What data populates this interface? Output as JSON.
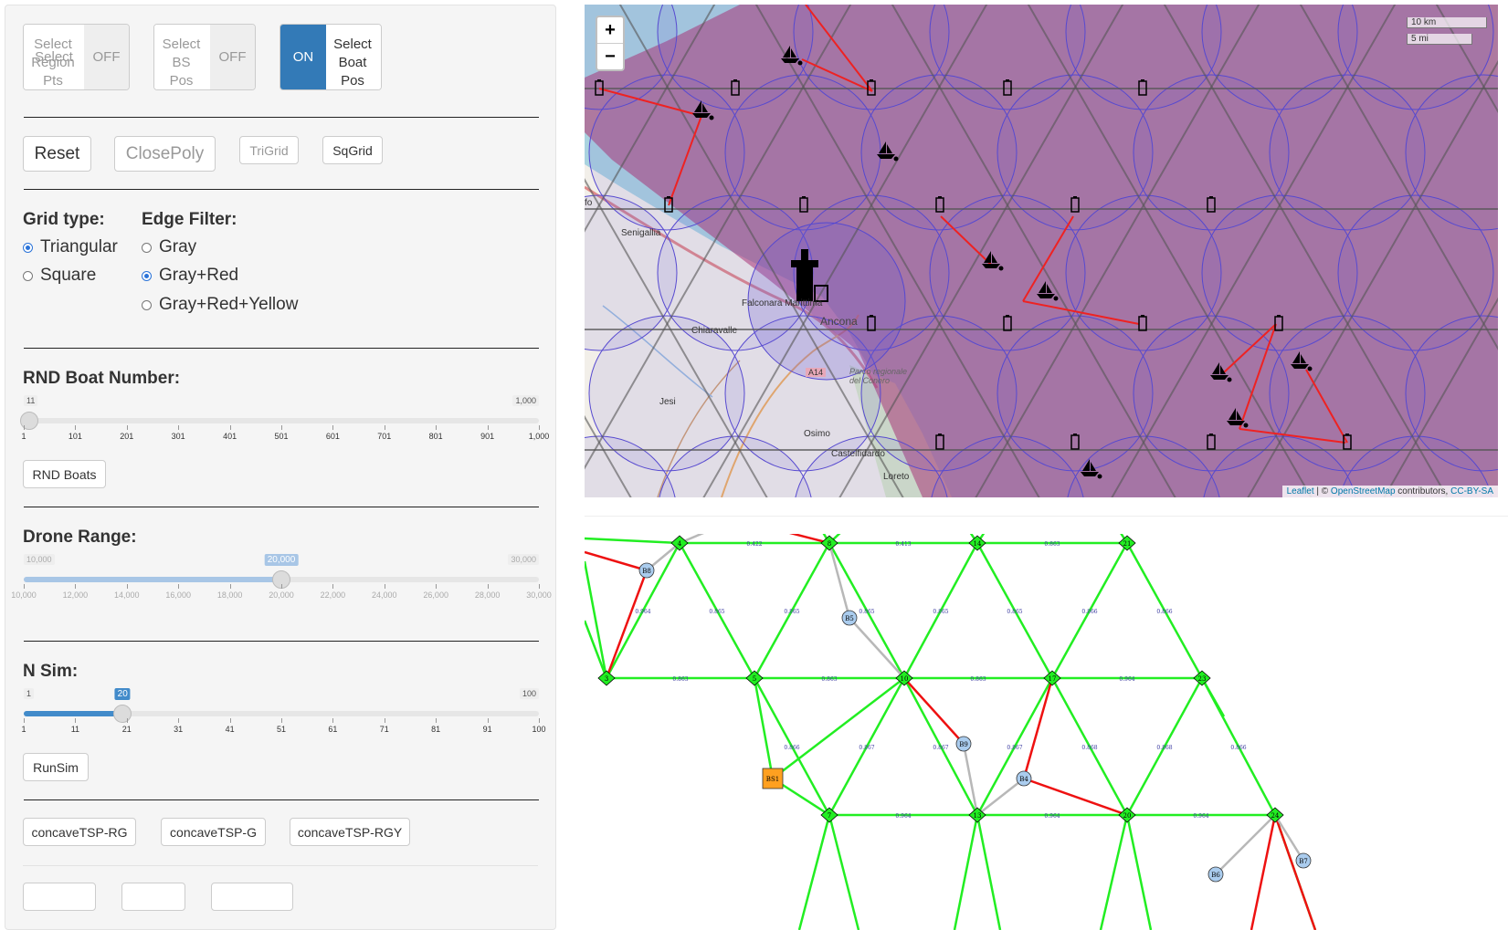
{
  "toggles": {
    "region": {
      "label_lines": [
        "Select",
        "Region",
        "Pts"
      ],
      "state": "OFF"
    },
    "bs": {
      "label_lines": [
        "Select",
        "BS",
        "Pos"
      ],
      "state": "OFF"
    },
    "boat": {
      "label_lines": [
        "Select",
        "Boat",
        "Pos"
      ],
      "state": "ON"
    }
  },
  "buttons": {
    "reset": "Reset",
    "closepoly": "ClosePoly",
    "trigrid": "TriGrid",
    "sqgrid": "SqGrid",
    "rnd_boats": "RND Boats",
    "runsim": "RunSim",
    "concave_rg": "concaveTSP-RG",
    "concave_g": "concaveTSP-G",
    "concave_rgy": "concaveTSP-RGY"
  },
  "grid_type": {
    "title": "Grid type:",
    "options": [
      "Triangular",
      "Square"
    ],
    "selected": "Triangular"
  },
  "edge_filter": {
    "title": "Edge Filter:",
    "options": [
      "Gray",
      "Gray+Red",
      "Gray+Red+Yellow"
    ],
    "selected": "Gray+Red"
  },
  "sliders": {
    "boat_number": {
      "title": "RND Boat Number:",
      "min_label": "1",
      "max_label": "1,000",
      "value_label": "11",
      "min": 1,
      "max": 1000,
      "value": 11,
      "ticks": [
        "1",
        "101",
        "201",
        "301",
        "401",
        "501",
        "601",
        "701",
        "801",
        "901",
        "1,000"
      ],
      "disabled": false
    },
    "drone_range": {
      "title": "Drone Range:",
      "min_label": "10,000",
      "max_label": "30,000",
      "value_label": "20,000",
      "min": 10000,
      "max": 30000,
      "value": 20000,
      "ticks": [
        "10,000",
        "12,000",
        "14,000",
        "16,000",
        "18,000",
        "20,000",
        "22,000",
        "24,000",
        "26,000",
        "28,000",
        "30,000"
      ],
      "disabled": true
    },
    "nsim": {
      "title": "N Sim:",
      "min_label": "1",
      "max_label": "100",
      "value_label": "20",
      "min": 1,
      "max": 100,
      "value": 20,
      "ticks": [
        "1",
        "11",
        "21",
        "31",
        "41",
        "51",
        "61",
        "71",
        "81",
        "91",
        "100"
      ],
      "disabled": false
    }
  },
  "map": {
    "zoom_in": "+",
    "zoom_out": "−",
    "scale_km": "10 km",
    "scale_mi": "5 mi",
    "attribution": {
      "leaflet": "Leaflet",
      "sep": " | © ",
      "osm": "OpenStreetMap",
      "contrib": " contributors, ",
      "license": "CC-BY-SA"
    },
    "places": [
      "Senigallia",
      "Falconara Marittima",
      "Chiaravalle",
      "Ancona",
      "Jesi",
      "Osimo",
      "Castelfidardo",
      "Loreto",
      "Parco regionale del Conero",
      "A14",
      "fo"
    ],
    "colors": {
      "sea": "#aad3df",
      "land": "#f2efe9",
      "polygon": "#b0306a",
      "circle": "#6b5cd6"
    }
  },
  "graph": {
    "node_labels": [
      "3",
      "4",
      "5",
      "7",
      "8",
      "10",
      "13",
      "14",
      "17",
      "20",
      "21",
      "23",
      "24"
    ],
    "boat_labels": [
      "B8",
      "B5",
      "B9",
      "B4",
      "B6",
      "B7"
    ],
    "bs_label": "BS1",
    "edge_labels": [
      "0.422",
      "0.413",
      "0.863",
      "0.863",
      "0.863",
      "0.863",
      "0.964",
      "0.964",
      "0.964",
      "0.964",
      "0.964",
      "0.865",
      "0.865",
      "0.865",
      "0.865",
      "0.865",
      "0.866",
      "0.866",
      "0.866",
      "0.866",
      "0.867",
      "0.867",
      "0.867",
      "0.868",
      "0.868",
      "0.868",
      "0.453",
      "0.457",
      "0.405",
      "0.272",
      "0.339",
      "0.562",
      "0.551",
      "0.396",
      "0.337",
      "0.455",
      "0.476",
      "0.305",
      "0.436",
      "0.446",
      "0.274"
    ],
    "colors": {
      "node": "#22ee22",
      "edge_green": "#22ee22",
      "edge_red": "#ee1111",
      "edge_gray": "#b8b8b8",
      "boat": "#aaccee",
      "bs": "#ffa020"
    }
  }
}
